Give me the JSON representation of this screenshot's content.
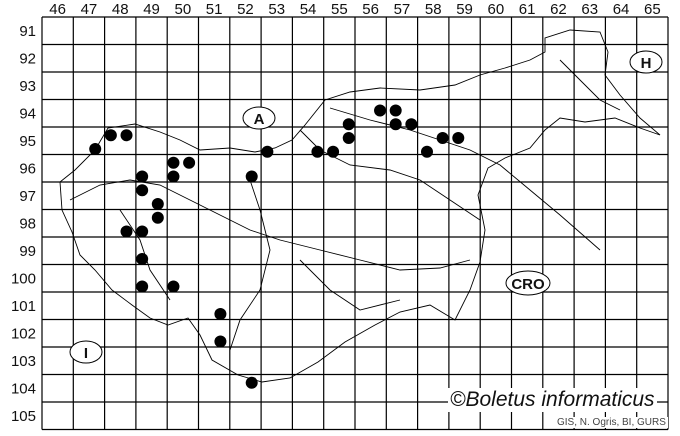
{
  "map": {
    "columns": [
      "46",
      "47",
      "48",
      "49",
      "50",
      "51",
      "52",
      "53",
      "54",
      "55",
      "56",
      "57",
      "58",
      "59",
      "60",
      "61",
      "62",
      "63",
      "64",
      "65"
    ],
    "rows": [
      "91",
      "92",
      "93",
      "94",
      "95",
      "96",
      "97",
      "98",
      "99",
      "100",
      "101",
      "102",
      "103",
      "104",
      "105"
    ],
    "country_labels": [
      {
        "id": "austria",
        "text": "A"
      },
      {
        "id": "hungary",
        "text": "H"
      },
      {
        "id": "croatia",
        "text": "CRO"
      },
      {
        "id": "italy",
        "text": "I"
      }
    ],
    "records": [
      [
        47.2,
        95.3
      ],
      [
        47.7,
        94.8
      ],
      [
        48.2,
        94.8
      ],
      [
        48.7,
        96.3
      ],
      [
        48.7,
        96.8
      ],
      [
        49.2,
        97.3
      ],
      [
        49.2,
        97.8
      ],
      [
        48.2,
        98.3
      ],
      [
        48.7,
        98.3
      ],
      [
        48.7,
        99.3
      ],
      [
        48.7,
        100.3
      ],
      [
        49.7,
        100.3
      ],
      [
        49.7,
        95.8
      ],
      [
        50.2,
        95.8
      ],
      [
        49.7,
        96.3
      ],
      [
        52.2,
        96.3
      ],
      [
        52.7,
        95.4
      ],
      [
        54.3,
        95.4
      ],
      [
        54.8,
        95.4
      ],
      [
        55.3,
        94.4
      ],
      [
        55.3,
        94.9
      ],
      [
        56.3,
        93.9
      ],
      [
        56.8,
        93.9
      ],
      [
        56.8,
        94.4
      ],
      [
        57.3,
        94.4
      ],
      [
        57.8,
        95.4
      ],
      [
        58.3,
        94.9
      ],
      [
        58.8,
        94.9
      ],
      [
        51.2,
        101.3
      ],
      [
        51.2,
        102.3
      ],
      [
        52.2,
        103.8
      ]
    ],
    "dot_color": "#000000"
  },
  "credit": "©Boletus informaticus",
  "source": "GIS, N. Ogris, BI, GURS"
}
